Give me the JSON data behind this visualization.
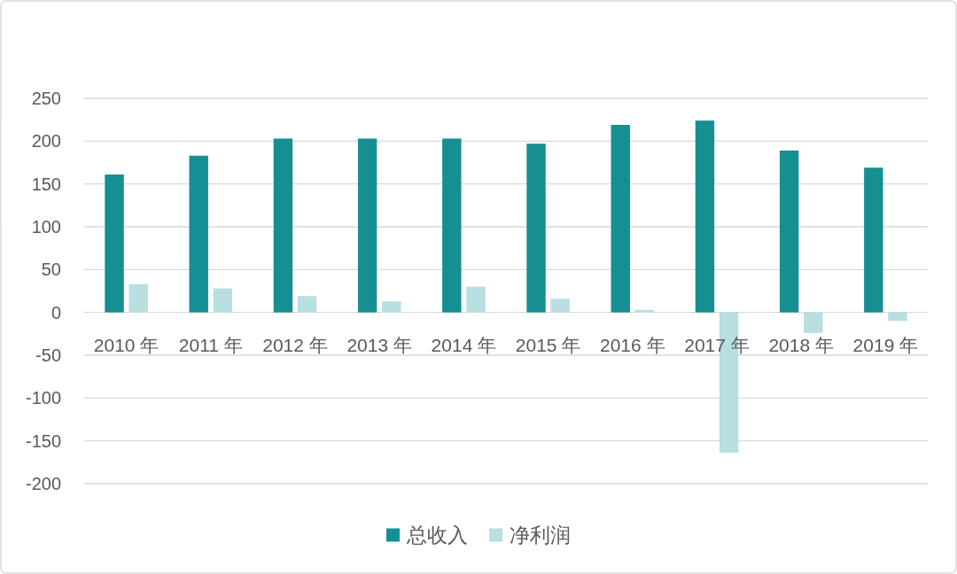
{
  "chart_data": {
    "type": "bar",
    "categories": [
      "2010 年",
      "2011 年",
      "2012 年",
      "2013 年",
      "2014 年",
      "2015 年",
      "2016 年",
      "2017 年",
      "2018 年",
      "2019 年"
    ],
    "series": [
      {
        "name": "总收入",
        "color": "#168f93",
        "values": [
          161,
          183,
          203,
          203,
          203,
          197,
          219,
          224,
          189,
          169
        ]
      },
      {
        "name": "净利润",
        "color": "#b8dfe1",
        "values": [
          33,
          28,
          19,
          13,
          30,
          16,
          3,
          -164,
          -24,
          -10
        ]
      }
    ],
    "ylim": [
      -200,
      250
    ],
    "yticks": [
      -200,
      -150,
      -100,
      -50,
      0,
      50,
      100,
      150,
      200,
      250
    ],
    "grid": "y",
    "legend": "bottom"
  }
}
